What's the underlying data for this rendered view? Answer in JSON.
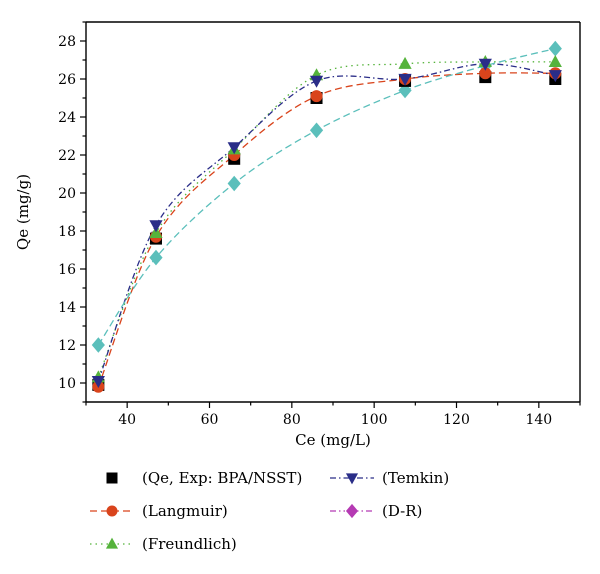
{
  "chart_data": {
    "type": "scatter",
    "xlabel": "Ce (mg/L)",
    "ylabel": "Qe (mg/g)",
    "xlim": [
      30,
      150
    ],
    "ylim": [
      9,
      29
    ],
    "xticks": [
      40,
      60,
      80,
      100,
      120,
      140
    ],
    "yticks": [
      10,
      12,
      14,
      16,
      18,
      20,
      22,
      24,
      26,
      28
    ],
    "x": [
      33,
      47,
      66,
      86,
      107.5,
      127,
      144
    ],
    "legend_placement": "bottom",
    "grid": false,
    "series": [
      {
        "name": "(Qe, Exp: BPA/NSST)",
        "marker": "square",
        "color": "#000000",
        "line": "none",
        "values": [
          9.9,
          17.6,
          21.8,
          25.0,
          25.9,
          26.1,
          26.0
        ]
      },
      {
        "name": "(Langmuir)",
        "marker": "circle",
        "color": "#d9441c",
        "line": "dash",
        "values": [
          9.8,
          17.7,
          22.0,
          25.1,
          26.0,
          26.3,
          26.3
        ]
      },
      {
        "name": "(Freundlich)",
        "marker": "triangle-up",
        "color": "#55b33b",
        "line": "dot",
        "values": [
          10.3,
          17.9,
          22.3,
          26.2,
          26.8,
          26.9,
          26.9
        ]
      },
      {
        "name": "(Temkin)",
        "marker": "triangle-down",
        "color": "#2a2d88",
        "line": "dashdot",
        "values": [
          10.1,
          18.3,
          22.4,
          25.9,
          26.0,
          26.8,
          26.2
        ]
      },
      {
        "name": "(D-R)",
        "marker": "diamond",
        "color": "#b53ab3",
        "line": "dashdotdot",
        "values": [
          null,
          null,
          null,
          null,
          null,
          null,
          null
        ]
      },
      {
        "name": "",
        "marker": "diamond",
        "color": "#5bbfbb",
        "line": "dash",
        "values": [
          12.0,
          16.6,
          20.5,
          23.3,
          25.4,
          26.7,
          27.6
        ]
      }
    ]
  }
}
